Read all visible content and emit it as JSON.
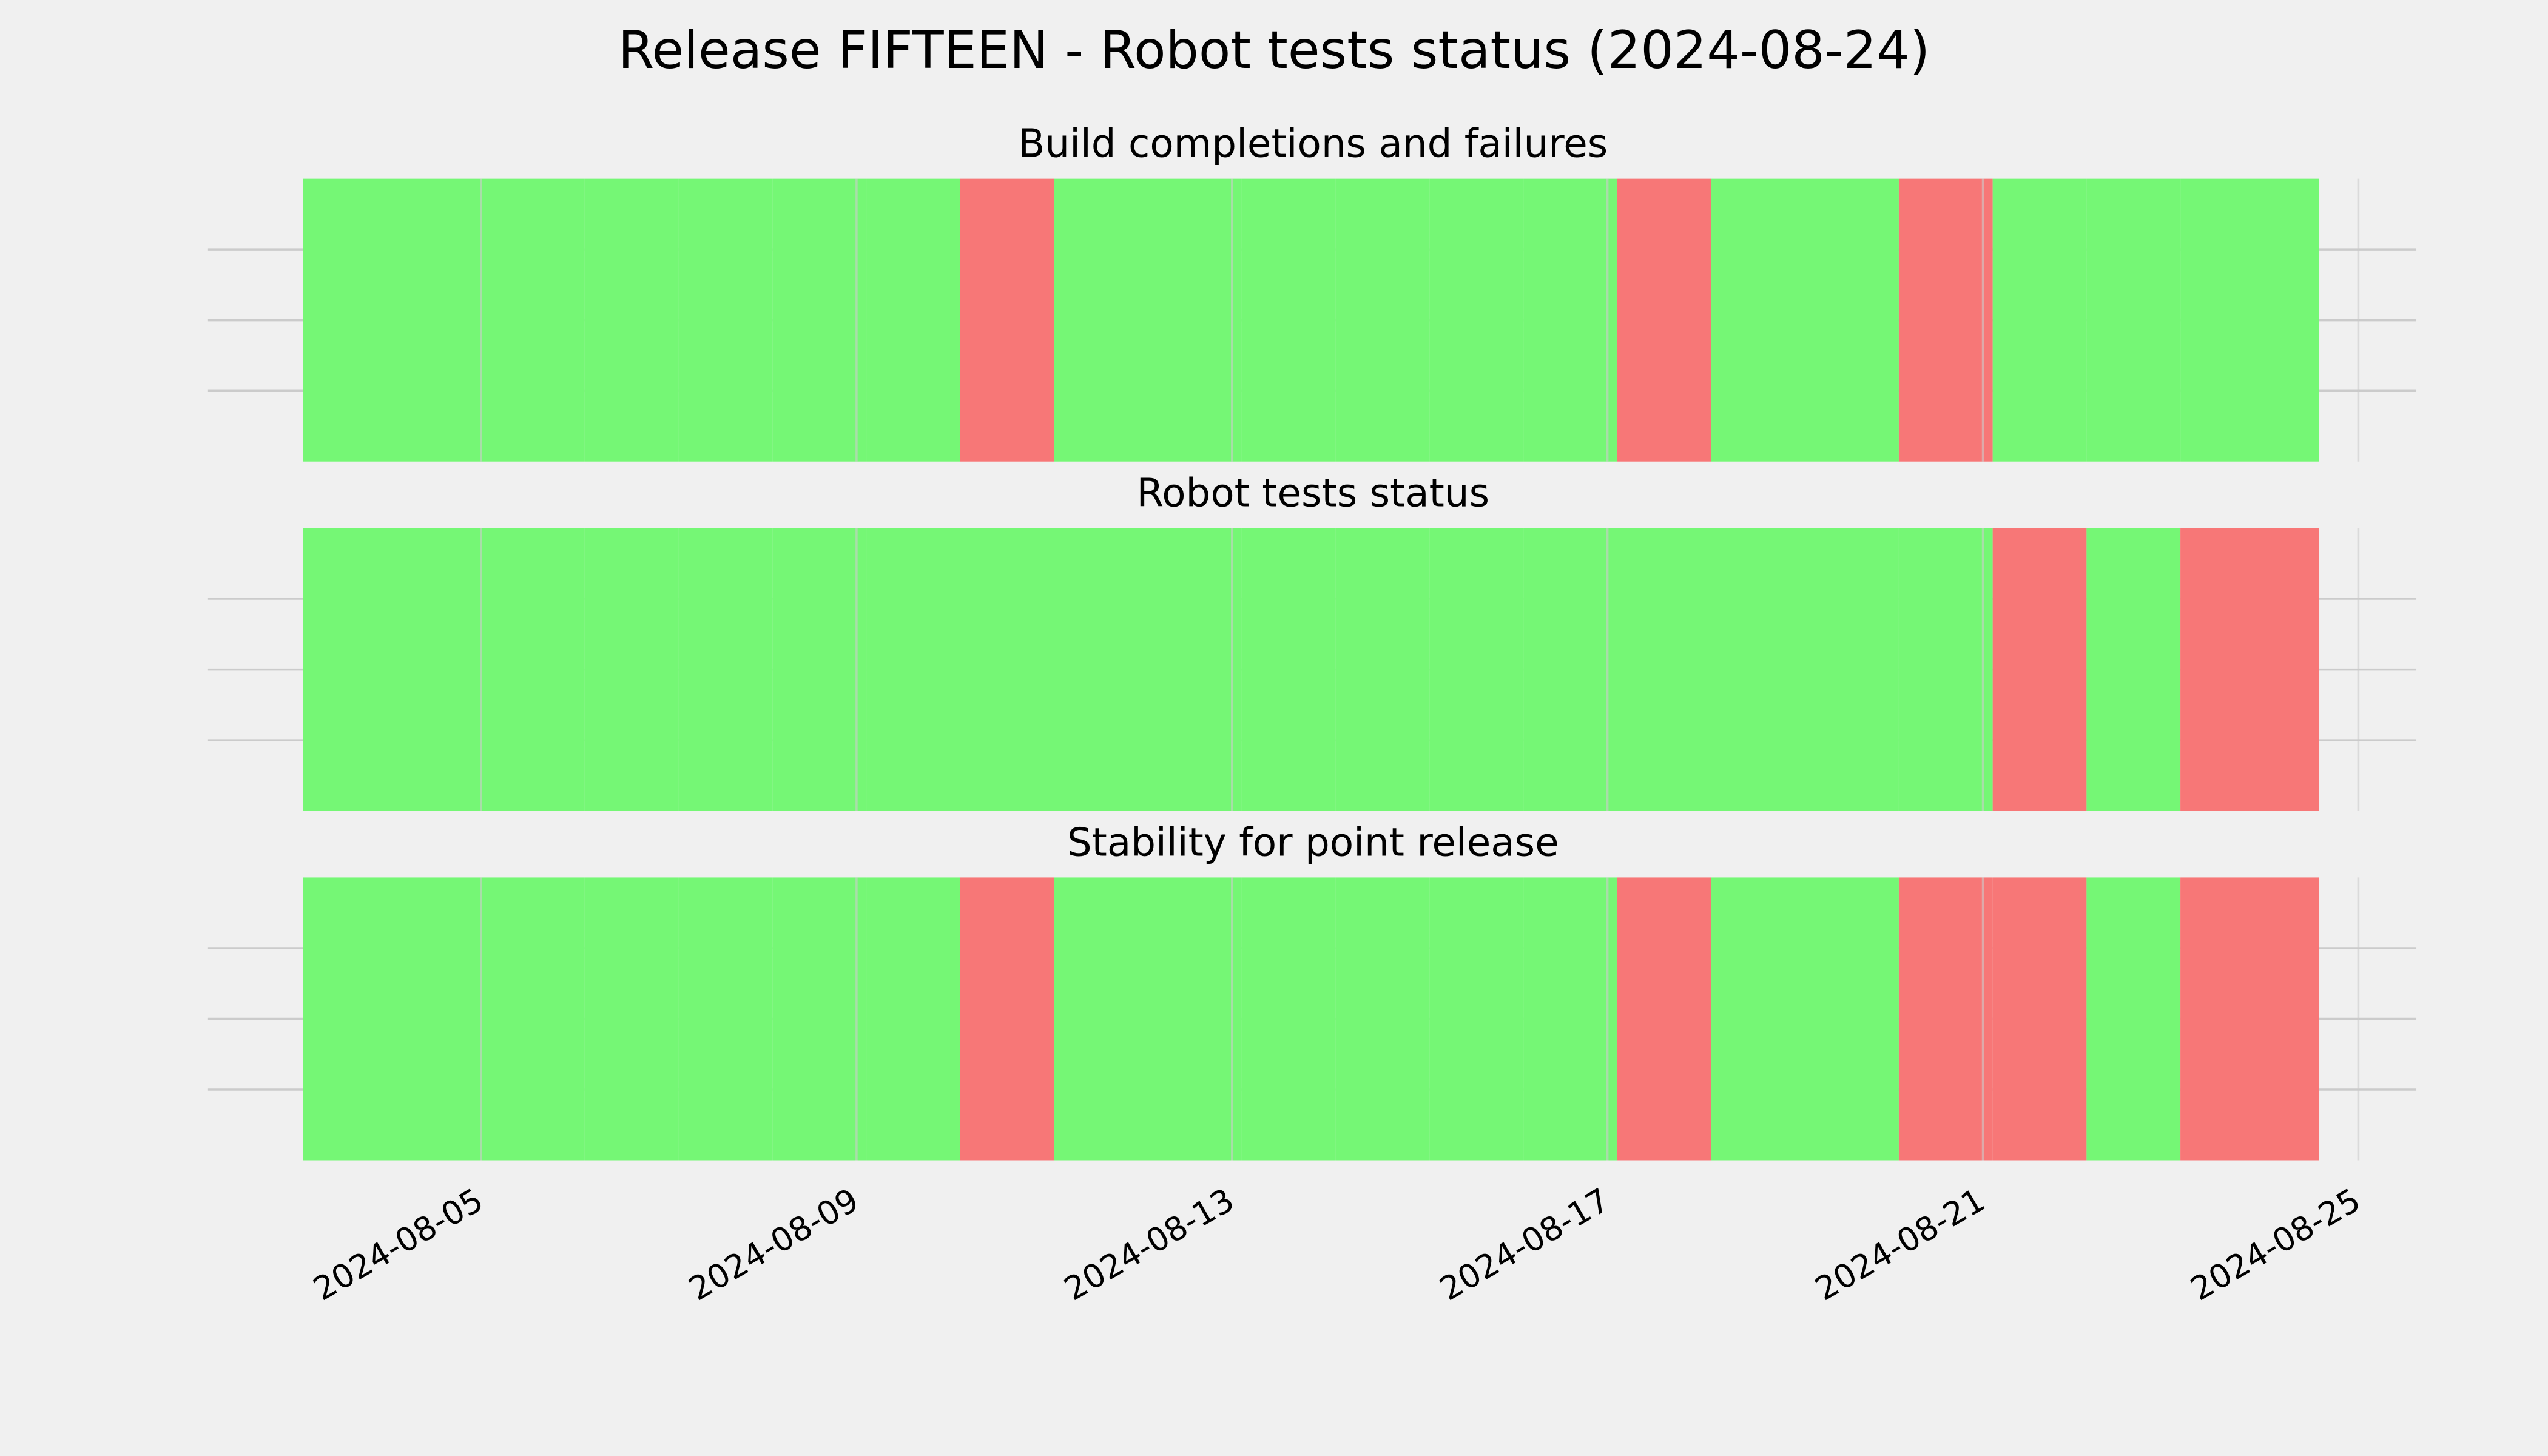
{
  "chart_data": {
    "type": "status-timeline",
    "title": "Release FIFTEEN - Robot tests status (2024-08-24)",
    "x": [
      "2024-08-03T02:30",
      "2024-08-04T02:30",
      "2024-08-05T02:30",
      "2024-08-06T02:30",
      "2024-08-07T02:30",
      "2024-08-08T02:30",
      "2024-08-09T02:30",
      "2024-08-10T02:30",
      "2024-08-11T02:30",
      "2024-08-12T02:30",
      "2024-08-13T02:30",
      "2024-08-14T02:30",
      "2024-08-15T02:30",
      "2024-08-16T02:30",
      "2024-08-17T02:30",
      "2024-08-18T02:30",
      "2024-08-19T02:30",
      "2024-08-20T02:30",
      "2024-08-21T02:30",
      "2024-08-22T02:30",
      "2024-08-23T02:30",
      "2024-08-24T02:30",
      "2024-08-24T14:00"
    ],
    "xlim": [
      "2024-08-02T02:10",
      "2024-08-25T14:50"
    ],
    "xticks": [
      "2024-08-05",
      "2024-08-09",
      "2024-08-13",
      "2024-08-17",
      "2024-08-21",
      "2024-08-25"
    ],
    "ylim": [
      0,
      1
    ],
    "yticks": [
      0.25,
      0.5,
      0.75
    ],
    "grid": true,
    "colors": {
      "pass": "#75f775",
      "fail": "#f77777"
    },
    "panels": [
      {
        "title": "Build completions and failures",
        "values": [
          "pass",
          "pass",
          "pass",
          "pass",
          "pass",
          "pass",
          "pass",
          "fail",
          "pass",
          "pass",
          "pass",
          "pass",
          "pass",
          "pass",
          "fail",
          "pass",
          "pass",
          "fail",
          "pass",
          "pass",
          "pass",
          "pass"
        ]
      },
      {
        "title": "Robot tests status",
        "values": [
          "pass",
          "pass",
          "pass",
          "pass",
          "pass",
          "pass",
          "pass",
          "pass",
          "pass",
          "pass",
          "pass",
          "pass",
          "pass",
          "pass",
          "pass",
          "pass",
          "pass",
          "pass",
          "fail",
          "pass",
          "fail",
          "fail"
        ]
      },
      {
        "title": "Stability for point release",
        "values": [
          "pass",
          "pass",
          "pass",
          "pass",
          "pass",
          "pass",
          "pass",
          "fail",
          "pass",
          "pass",
          "pass",
          "pass",
          "pass",
          "pass",
          "fail",
          "pass",
          "pass",
          "fail",
          "fail",
          "pass",
          "fail",
          "fail"
        ]
      }
    ]
  }
}
